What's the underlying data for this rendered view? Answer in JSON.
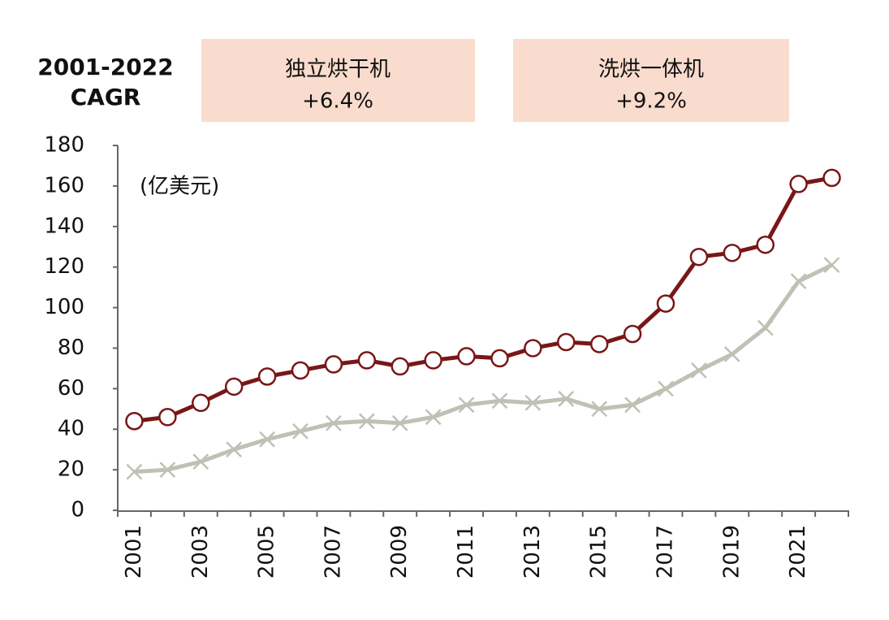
{
  "chart_data": {
    "type": "line",
    "title_lines": [
      "2001-2022",
      "CAGR"
    ],
    "boxes": [
      {
        "label": "独立烘干机",
        "text": "+6.4%"
      },
      {
        "label": "洗烘一体机",
        "text": "+9.2%"
      }
    ],
    "unit": "(亿美元)",
    "categories": [
      "2001",
      null,
      "2003",
      null,
      "2005",
      null,
      "2007",
      null,
      "2009",
      null,
      "2011",
      null,
      "2013",
      null,
      "2015",
      null,
      "2017",
      null,
      "2019",
      null,
      "2021",
      null
    ],
    "series": [
      {
        "color": "#7a1616",
        "marker": "circle",
        "values": [
          44,
          46,
          53,
          61,
          66,
          69,
          72,
          74,
          71,
          74,
          76,
          75,
          80,
          83,
          82,
          87,
          102,
          125,
          127,
          131,
          161,
          164
        ]
      },
      {
        "color": "#bfc1b4",
        "marker": "x",
        "values": [
          19,
          20,
          24,
          30,
          35,
          39,
          43,
          44,
          43,
          46,
          52,
          54,
          53,
          55,
          50,
          52,
          60,
          69,
          77,
          90,
          113,
          121
        ]
      }
    ],
    "ylim": [
      0,
      180
    ],
    "yticks": [
      0,
      20,
      40,
      60,
      80,
      100,
      120,
      140,
      160,
      180
    ],
    "grid": false
  }
}
